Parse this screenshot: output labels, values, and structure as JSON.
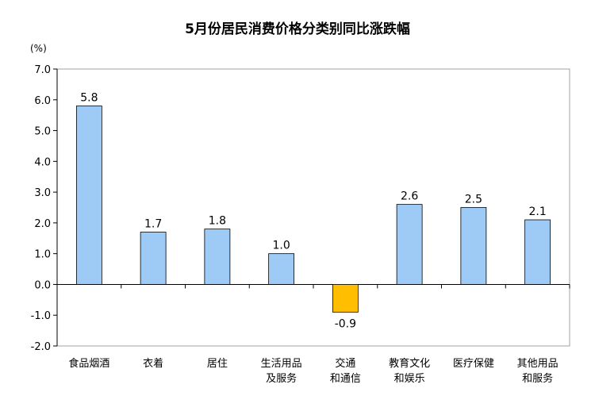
{
  "chart_data": {
    "type": "bar",
    "title": "5月份居民消费价格分类别同比涨跌幅",
    "unit": "(%)",
    "ylim": [
      -2.0,
      7.0
    ],
    "yticks": [
      "7.0",
      "6.0",
      "5.0",
      "4.0",
      "3.0",
      "2.0",
      "1.0",
      "0.0",
      "-1.0",
      "-2.0"
    ],
    "categories": [
      [
        "食品烟酒"
      ],
      [
        "衣着"
      ],
      [
        "居住"
      ],
      [
        "生活用品",
        "及服务"
      ],
      [
        "交通",
        "和通信"
      ],
      [
        "教育文化",
        "和娱乐"
      ],
      [
        "医疗保健"
      ],
      [
        "其他用品",
        "和服务"
      ]
    ],
    "values": [
      5.8,
      1.7,
      1.8,
      1.0,
      -0.9,
      2.6,
      2.5,
      2.1
    ],
    "value_labels": [
      "5.8",
      "1.7",
      "1.8",
      "1.0",
      "-0.9",
      "2.6",
      "2.5",
      "2.1"
    ],
    "colors": {
      "positive": "#9ecbf5",
      "negative": "#ffbf00",
      "bar_stroke": "#000000",
      "axis": "#000000",
      "frame": "#a0a0a0"
    }
  }
}
